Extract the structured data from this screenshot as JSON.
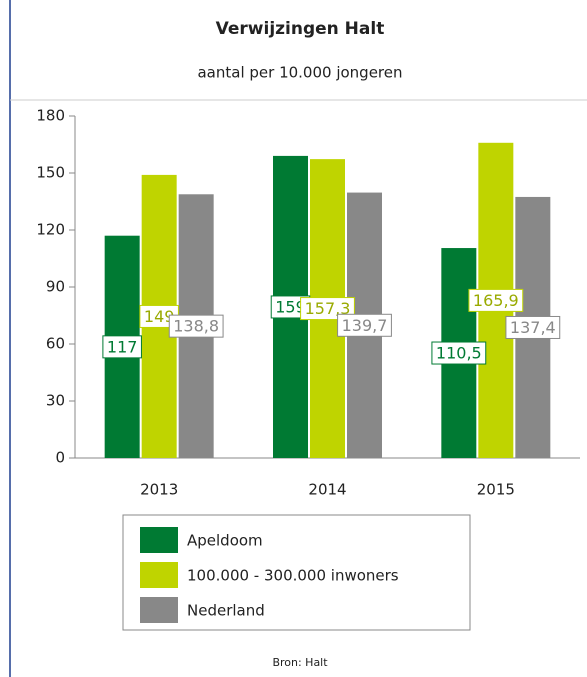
{
  "chart_data": {
    "type": "bar",
    "title": "Verwijzingen Halt",
    "subtitle": "aantal per 10.000 jongeren",
    "categories": [
      "2013",
      "2014",
      "2015"
    ],
    "series": [
      {
        "name": "Apeldoom",
        "color": "#007a33",
        "values": [
          117,
          159,
          110.5
        ],
        "value_labels": [
          "117",
          "159",
          "110,5"
        ]
      },
      {
        "name": "100.000 - 300.000 inwoners",
        "color": "#bfd400",
        "values": [
          149,
          157.3,
          165.9
        ],
        "value_labels": [
          "149",
          "157,3",
          "165,9"
        ]
      },
      {
        "name": "Nederland",
        "color": "#888888",
        "values": [
          138.8,
          139.7,
          137.4
        ],
        "value_labels": [
          "138,8",
          "139,7",
          "137,4"
        ]
      }
    ],
    "ylim": [
      0,
      180
    ],
    "yticks": [
      0,
      30,
      60,
      90,
      120,
      150,
      180
    ],
    "grid": false,
    "source": "Bron: Halt"
  }
}
